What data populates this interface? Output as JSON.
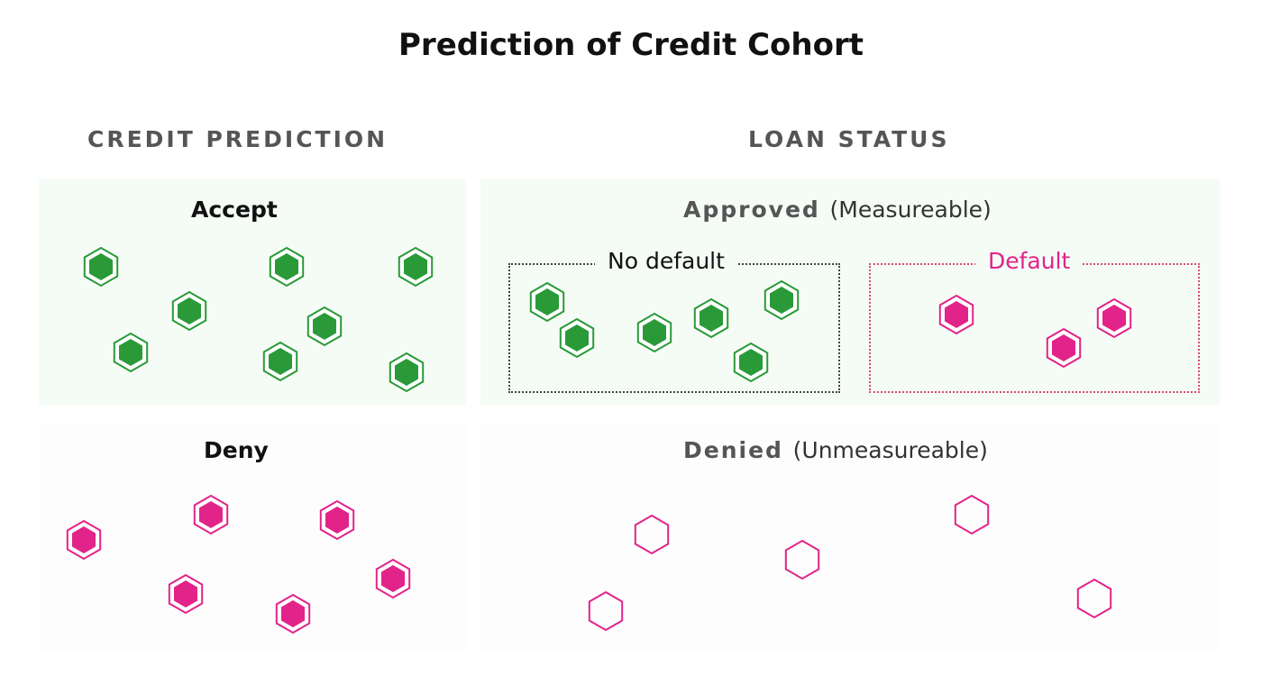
{
  "title": "Prediction of Credit Cohort",
  "columns": {
    "left": "CREDIT PREDICTION",
    "right": "LOAN STATUS"
  },
  "panels": {
    "accept": {
      "label": "Accept"
    },
    "deny": {
      "label": "Deny"
    },
    "approved": {
      "label": "Approved",
      "sub": "(Measureable)"
    },
    "denied": {
      "label": "Denied",
      "sub": "(Unmeasureable)"
    }
  },
  "boxes": {
    "no_default": "No default",
    "default": "Default"
  },
  "colors": {
    "green": "#2a9a38",
    "pink": "#e2238a",
    "panel_green": "#f5fcf5"
  }
}
